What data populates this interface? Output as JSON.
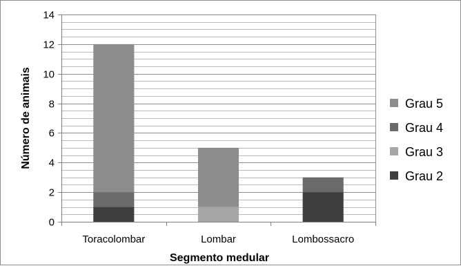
{
  "chart_data": {
    "type": "bar",
    "stacked": true,
    "title": "",
    "xlabel": "Segmento medular",
    "ylabel": "Número de animais",
    "ylim": [
      0,
      14
    ],
    "yticks": [
      0,
      2,
      4,
      6,
      8,
      10,
      12,
      14
    ],
    "grid": true,
    "legend_position": "right",
    "categories": [
      "Toracolombar",
      "Lombar",
      "Lombossacro"
    ],
    "series": [
      {
        "name": "Grau 2",
        "values": [
          1,
          0,
          2
        ],
        "color": "#3f3f3f"
      },
      {
        "name": "Grau 3",
        "values": [
          0,
          1,
          0
        ],
        "color": "#a6a6a6"
      },
      {
        "name": "Grau 4",
        "values": [
          1,
          0,
          1
        ],
        "color": "#6a6a6a"
      },
      {
        "name": "Grau 5",
        "values": [
          10,
          4,
          0
        ],
        "color": "#8c8c8c"
      }
    ],
    "legend_order": [
      "Grau 5",
      "Grau 4",
      "Grau 3",
      "Grau 2"
    ]
  }
}
